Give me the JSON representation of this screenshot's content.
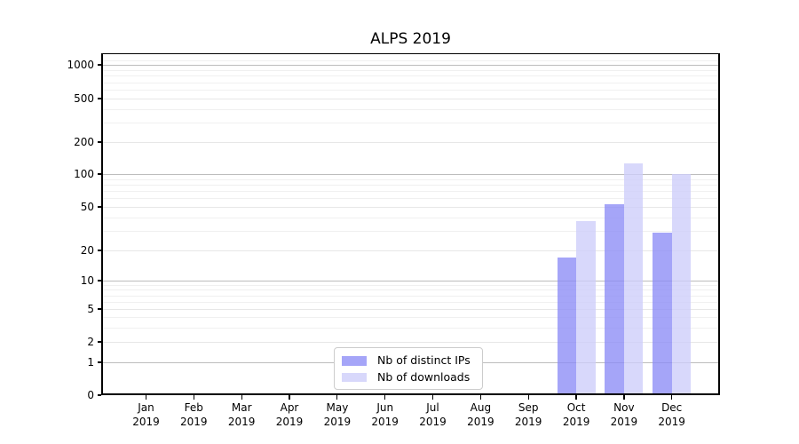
{
  "title": "ALPS 2019",
  "chart_data": {
    "type": "bar",
    "title": "ALPS 2019",
    "xlabel": "",
    "ylabel": "",
    "y_scale": "symlog",
    "grid": true,
    "x_year": "2019",
    "x_categories": [
      "Jan",
      "Feb",
      "Mar",
      "Apr",
      "May",
      "Jun",
      "Jul",
      "Aug",
      "Sep",
      "Oct",
      "Nov",
      "Dec"
    ],
    "y_ticks": [
      0,
      1,
      2,
      5,
      10,
      20,
      50,
      100,
      200,
      500,
      1000
    ],
    "ylim": [
      0,
      1300
    ],
    "series": [
      {
        "name": "Nb of distinct IPs",
        "color": "#8c8cf6",
        "values": [
          null,
          null,
          null,
          null,
          null,
          null,
          null,
          null,
          null,
          17,
          53,
          29
        ]
      },
      {
        "name": "Nb of downloads",
        "color": "#cdcdfa",
        "values": [
          null,
          null,
          null,
          null,
          null,
          null,
          null,
          null,
          null,
          37,
          125,
          100
        ]
      }
    ],
    "legend": {
      "position": "lower center",
      "entries": [
        "Nb of distinct IPs",
        "Nb of downloads"
      ]
    }
  }
}
